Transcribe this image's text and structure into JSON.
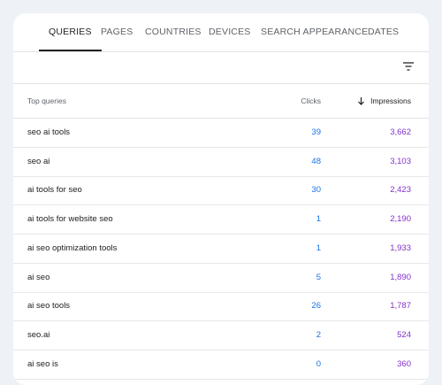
{
  "tabs": [
    "QUERIES",
    "PAGES",
    "COUNTRIES",
    "DEVICES",
    "SEARCH APPEARANCE",
    "DATES"
  ],
  "table": {
    "header": [
      "Top queries",
      "Clicks",
      "Impressions"
    ],
    "rows": [
      [
        "seo ai tools",
        "39",
        "3,662"
      ],
      [
        "seo ai",
        "48",
        "3,103"
      ],
      [
        "ai tools for seo",
        "30",
        "2,423"
      ],
      [
        "ai tools for website seo",
        "1",
        "2,190"
      ],
      [
        "ai seo optimization tools",
        "1",
        "1,933"
      ],
      [
        "ai seo",
        "5",
        "1,890"
      ],
      [
        "ai seo tools",
        "26",
        "1,787"
      ],
      [
        "seo.ai",
        "2",
        "524"
      ],
      [
        "ai seo is",
        "0",
        "360"
      ]
    ]
  }
}
